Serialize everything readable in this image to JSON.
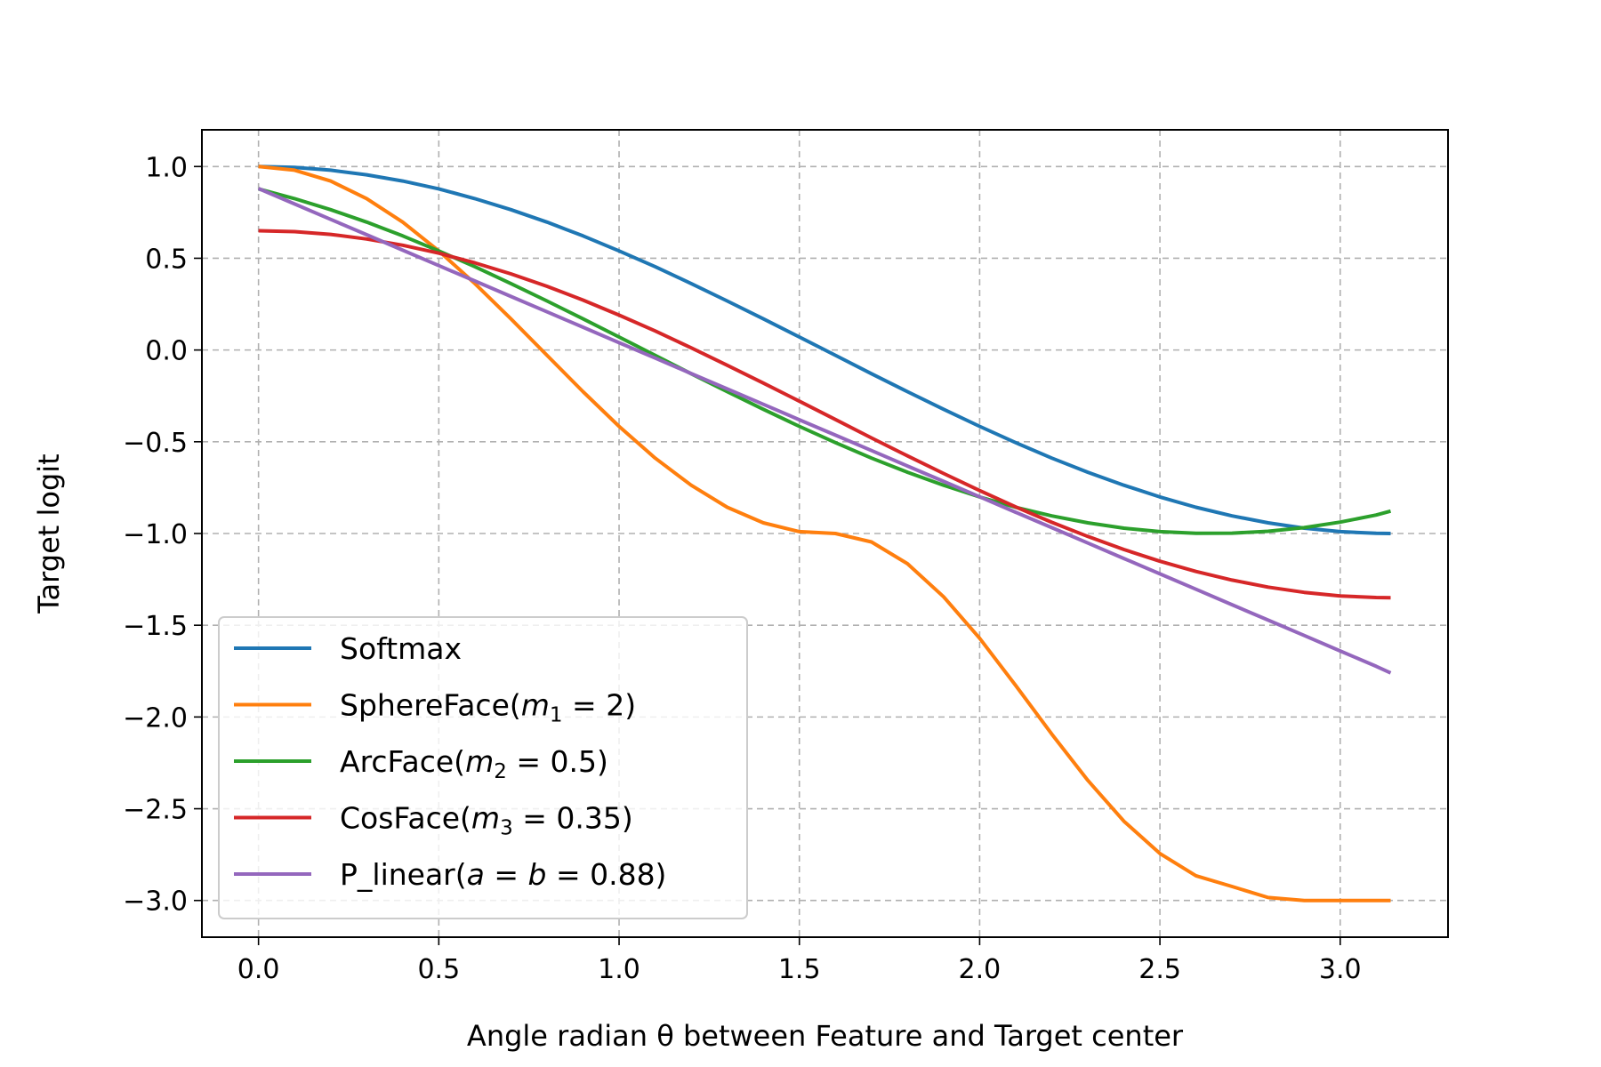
{
  "chart_data": {
    "type": "line",
    "title": "",
    "xlabel": "Angle radian θ between Feature and Target center",
    "ylabel": "Target logit",
    "xlim": [
      -0.157,
      3.299
    ],
    "ylim": [
      -3.2,
      1.2
    ],
    "x_ticks": [
      0.0,
      0.5,
      1.0,
      1.5,
      2.0,
      2.5,
      3.0
    ],
    "x_tick_labels": [
      "0.0",
      "0.5",
      "1.0",
      "1.5",
      "2.0",
      "2.5",
      "3.0"
    ],
    "y_ticks": [
      1.0,
      0.5,
      0.0,
      -0.5,
      -1.0,
      -1.5,
      -2.0,
      -2.5,
      -3.0
    ],
    "y_tick_labels": [
      "1.0",
      "0.5",
      "0.0",
      "−0.5",
      "−1.0",
      "−1.5",
      "−2.0",
      "−2.5",
      "−3.0"
    ],
    "grid": true,
    "legend_position": "lower-left",
    "x": [
      0.0,
      0.1,
      0.2,
      0.3,
      0.4,
      0.5,
      0.6,
      0.7,
      0.8,
      0.9,
      1.0,
      1.1,
      1.2,
      1.3,
      1.4,
      1.5,
      1.6,
      1.7,
      1.8,
      1.9,
      2.0,
      2.1,
      2.2,
      2.3,
      2.4,
      2.5,
      2.6,
      2.7,
      2.8,
      2.9,
      3.0,
      3.1,
      3.14
    ],
    "series": [
      {
        "name": "Softmax",
        "color": "#1f77b4",
        "values": [
          1.0,
          0.995,
          0.98,
          0.955,
          0.921,
          0.878,
          0.825,
          0.765,
          0.697,
          0.622,
          0.54,
          0.454,
          0.362,
          0.267,
          0.17,
          0.071,
          -0.029,
          -0.129,
          -0.227,
          -0.323,
          -0.416,
          -0.505,
          -0.589,
          -0.666,
          -0.737,
          -0.801,
          -0.857,
          -0.904,
          -0.942,
          -0.971,
          -0.99,
          -0.999,
          -1.0
        ]
      },
      {
        "name": "SphereFace(m₁ = 2)",
        "legend_parts": [
          "SphereFace(",
          "m",
          "1",
          " = 2)"
        ],
        "color": "#ff7f0e",
        "values": [
          1.0,
          0.98,
          0.921,
          0.825,
          0.697,
          0.54,
          0.362,
          0.17,
          -0.029,
          -0.227,
          -0.416,
          -0.589,
          -0.737,
          -0.857,
          -0.942,
          -0.99,
          -1.0,
          -1.046,
          -1.165,
          -1.345,
          -1.571,
          -1.828,
          -2.093,
          -2.345,
          -2.568,
          -2.744,
          -2.865,
          -2.924,
          -2.984,
          -3.0,
          -3.0,
          -3.0,
          -3.0
        ]
      },
      {
        "name": "ArcFace(m₂ = 0.5)",
        "legend_parts": [
          "ArcFace(",
          "m",
          "2",
          " = 0.5)"
        ],
        "color": "#2ca02c",
        "values": [
          0.878,
          0.825,
          0.765,
          0.697,
          0.622,
          0.54,
          0.454,
          0.362,
          0.267,
          0.17,
          0.071,
          -0.029,
          -0.129,
          -0.227,
          -0.323,
          -0.416,
          -0.505,
          -0.589,
          -0.666,
          -0.737,
          -0.801,
          -0.857,
          -0.904,
          -0.942,
          -0.971,
          -0.99,
          -0.999,
          -0.998,
          -0.988,
          -0.968,
          -0.938,
          -0.899,
          -0.878
        ]
      },
      {
        "name": "CosFace(m₃ = 0.35)",
        "legend_parts": [
          "CosFace(",
          "m",
          "3",
          " = 0.35)"
        ],
        "color": "#d62728",
        "values": [
          0.65,
          0.645,
          0.63,
          0.605,
          0.571,
          0.528,
          0.475,
          0.415,
          0.347,
          0.272,
          0.19,
          0.104,
          0.012,
          -0.083,
          -0.18,
          -0.279,
          -0.379,
          -0.479,
          -0.577,
          -0.673,
          -0.766,
          -0.855,
          -0.939,
          -1.016,
          -1.087,
          -1.151,
          -1.207,
          -1.254,
          -1.292,
          -1.321,
          -1.34,
          -1.349,
          -1.35
        ]
      },
      {
        "name": "P_linear(a = b = 0.88)",
        "legend_parts": [
          "P_linear(",
          "a",
          "",
          " = ",
          "b",
          " = 0.88)"
        ],
        "color": "#9467bd",
        "values": [
          0.88,
          0.796,
          0.712,
          0.628,
          0.544,
          0.46,
          0.376,
          0.292,
          0.208,
          0.124,
          0.04,
          -0.044,
          -0.128,
          -0.212,
          -0.296,
          -0.38,
          -0.464,
          -0.548,
          -0.632,
          -0.716,
          -0.8,
          -0.884,
          -0.968,
          -1.052,
          -1.136,
          -1.22,
          -1.304,
          -1.388,
          -1.472,
          -1.556,
          -1.64,
          -1.724,
          -1.76
        ]
      }
    ]
  }
}
